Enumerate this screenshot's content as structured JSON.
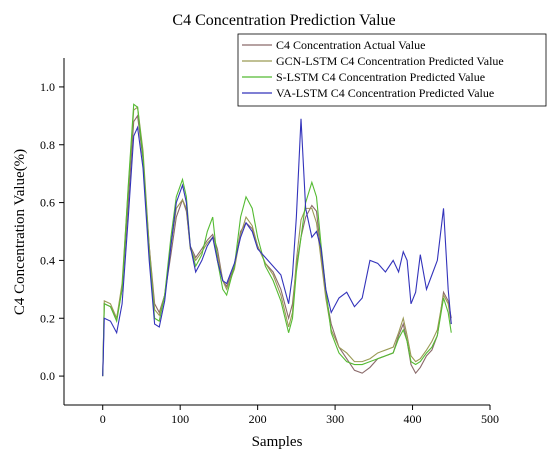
{
  "chart_data": {
    "type": "line",
    "title": "C4 Concentration Prediction Value",
    "xlabel": "Samples",
    "ylabel": "C4 Concentration Value(%)",
    "xlim": [
      -50,
      500
    ],
    "ylim": [
      -0.1,
      1.1
    ],
    "xticks": [
      0,
      100,
      200,
      300,
      400,
      500
    ],
    "yticks": [
      0.0,
      0.2,
      0.4,
      0.6,
      0.8,
      1.0
    ],
    "grid": false,
    "legend_position": "top-right",
    "series": [
      {
        "name": "C4 Concentration Actual Value",
        "color": "#8a6a6a",
        "x": [
          0,
          2,
          10,
          18,
          25,
          33,
          40,
          45,
          52,
          60,
          67,
          73,
          80,
          88,
          95,
          103,
          108,
          113,
          120,
          128,
          135,
          142,
          148,
          155,
          160,
          170,
          178,
          185,
          193,
          200,
          210,
          220,
          230,
          240,
          245,
          250,
          256,
          262,
          270,
          276,
          282,
          288,
          295,
          305,
          315,
          325,
          335,
          345,
          355,
          365,
          375,
          382,
          388,
          393,
          398,
          404,
          410,
          418,
          425,
          432,
          440,
          446,
          450
        ],
        "values": [
          0.0,
          0.25,
          0.24,
          0.2,
          0.3,
          0.6,
          0.88,
          0.9,
          0.75,
          0.45,
          0.25,
          0.22,
          0.28,
          0.42,
          0.55,
          0.61,
          0.57,
          0.45,
          0.41,
          0.44,
          0.47,
          0.49,
          0.44,
          0.33,
          0.31,
          0.38,
          0.5,
          0.53,
          0.51,
          0.45,
          0.39,
          0.36,
          0.3,
          0.2,
          0.25,
          0.38,
          0.48,
          0.55,
          0.59,
          0.57,
          0.42,
          0.28,
          0.18,
          0.1,
          0.06,
          0.02,
          0.01,
          0.03,
          0.06,
          0.07,
          0.08,
          0.14,
          0.18,
          0.12,
          0.04,
          0.01,
          0.03,
          0.07,
          0.09,
          0.14,
          0.29,
          0.26,
          0.2
        ]
      },
      {
        "name": "GCN-LSTM C4 Concentration Predicted Value",
        "color": "#9a9a55",
        "x": [
          0,
          2,
          10,
          18,
          25,
          33,
          40,
          45,
          52,
          60,
          67,
          73,
          80,
          88,
          95,
          103,
          108,
          113,
          120,
          128,
          135,
          142,
          148,
          155,
          160,
          170,
          178,
          185,
          193,
          200,
          210,
          220,
          230,
          240,
          245,
          250,
          256,
          262,
          270,
          276,
          282,
          288,
          295,
          305,
          315,
          325,
          335,
          345,
          355,
          365,
          375,
          382,
          388,
          393,
          398,
          404,
          410,
          418,
          425,
          432,
          440,
          446,
          450
        ],
        "values": [
          0.0,
          0.26,
          0.25,
          0.2,
          0.32,
          0.65,
          0.92,
          0.93,
          0.78,
          0.45,
          0.23,
          0.21,
          0.28,
          0.45,
          0.58,
          0.61,
          0.58,
          0.44,
          0.4,
          0.43,
          0.46,
          0.48,
          0.42,
          0.33,
          0.3,
          0.37,
          0.49,
          0.55,
          0.52,
          0.45,
          0.39,
          0.35,
          0.28,
          0.17,
          0.22,
          0.4,
          0.54,
          0.58,
          0.58,
          0.53,
          0.4,
          0.27,
          0.16,
          0.1,
          0.08,
          0.05,
          0.05,
          0.06,
          0.08,
          0.09,
          0.1,
          0.15,
          0.2,
          0.14,
          0.07,
          0.05,
          0.06,
          0.09,
          0.12,
          0.16,
          0.28,
          0.25,
          0.18
        ]
      },
      {
        "name": "S-LSTM C4 Concentration Predicted Value",
        "color": "#55bb33",
        "x": [
          0,
          2,
          10,
          18,
          25,
          33,
          40,
          45,
          52,
          60,
          67,
          73,
          80,
          88,
          95,
          103,
          108,
          113,
          120,
          128,
          135,
          142,
          148,
          155,
          160,
          170,
          178,
          185,
          193,
          200,
          210,
          220,
          230,
          240,
          245,
          250,
          256,
          262,
          270,
          276,
          282,
          288,
          295,
          305,
          315,
          325,
          335,
          345,
          355,
          365,
          375,
          382,
          388,
          393,
          398,
          404,
          410,
          418,
          425,
          432,
          440,
          446,
          450
        ],
        "values": [
          0.0,
          0.25,
          0.24,
          0.19,
          0.3,
          0.66,
          0.94,
          0.93,
          0.76,
          0.42,
          0.2,
          0.19,
          0.28,
          0.48,
          0.62,
          0.68,
          0.62,
          0.45,
          0.38,
          0.42,
          0.5,
          0.55,
          0.4,
          0.3,
          0.28,
          0.38,
          0.55,
          0.62,
          0.58,
          0.48,
          0.38,
          0.33,
          0.26,
          0.15,
          0.2,
          0.36,
          0.48,
          0.6,
          0.67,
          0.62,
          0.45,
          0.3,
          0.15,
          0.08,
          0.05,
          0.04,
          0.04,
          0.05,
          0.06,
          0.07,
          0.08,
          0.13,
          0.16,
          0.12,
          0.05,
          0.04,
          0.05,
          0.08,
          0.1,
          0.14,
          0.27,
          0.22,
          0.15
        ]
      },
      {
        "name": "VA-LSTM C4 Concentration Predicted Value",
        "color": "#3333bb",
        "x": [
          0,
          2,
          10,
          18,
          25,
          33,
          40,
          45,
          52,
          60,
          67,
          73,
          80,
          88,
          95,
          103,
          108,
          113,
          120,
          128,
          135,
          142,
          148,
          155,
          160,
          170,
          178,
          185,
          193,
          200,
          210,
          220,
          230,
          240,
          245,
          250,
          256,
          262,
          270,
          276,
          282,
          288,
          295,
          305,
          315,
          325,
          335,
          345,
          355,
          365,
          375,
          382,
          388,
          393,
          398,
          404,
          410,
          418,
          425,
          432,
          440,
          446,
          450
        ],
        "values": [
          0.0,
          0.2,
          0.19,
          0.15,
          0.25,
          0.55,
          0.83,
          0.86,
          0.72,
          0.4,
          0.18,
          0.17,
          0.26,
          0.45,
          0.6,
          0.66,
          0.6,
          0.45,
          0.36,
          0.4,
          0.45,
          0.48,
          0.4,
          0.33,
          0.32,
          0.39,
          0.48,
          0.53,
          0.5,
          0.44,
          0.41,
          0.38,
          0.35,
          0.25,
          0.35,
          0.55,
          0.89,
          0.58,
          0.48,
          0.5,
          0.44,
          0.3,
          0.22,
          0.27,
          0.29,
          0.24,
          0.27,
          0.4,
          0.39,
          0.36,
          0.4,
          0.36,
          0.43,
          0.4,
          0.25,
          0.29,
          0.42,
          0.3,
          0.35,
          0.4,
          0.58,
          0.3,
          0.18
        ]
      }
    ]
  }
}
